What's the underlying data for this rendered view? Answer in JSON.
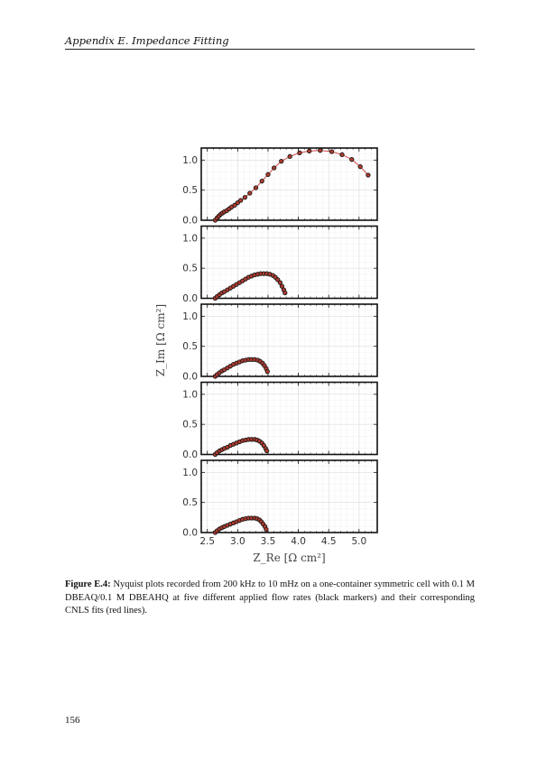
{
  "header": {
    "running_title": "Appendix E.  Impedance Fitting"
  },
  "page_number": "156",
  "caption": {
    "label": "Figure E.4:",
    "text": "Nyquist plots recorded from 200 kHz to 10 mHz on a one-container symmetric cell with 0.1 M DBEAQ/0.1 M DBEAHQ at five different applied flow rates (black markers) and their corresponding CNLS fits (red lines)."
  },
  "colors": {
    "marker_fill": "#b03a2e",
    "marker_edge": "#1a1a1a",
    "fit_line": "#d45555",
    "grid": "#dddddd"
  },
  "chart_data": {
    "type": "scatter",
    "layout": "five vertically stacked panels sharing x axis",
    "xlabel": "Z_Re [Ω cm²]",
    "ylabel": "Z_Im [Ω cm²]",
    "xlim": [
      2.4,
      5.3
    ],
    "ylim": [
      0,
      1.2
    ],
    "x_ticks": [
      2.5,
      3.0,
      3.5,
      4.0,
      4.5,
      5.0
    ],
    "x_tick_labels": [
      "2.5",
      "3.0",
      "3.5",
      "4.0",
      "4.5",
      "5.0"
    ],
    "y_ticks": [
      0.0,
      0.5,
      1.0
    ],
    "y_tick_labels": [
      "0.0",
      "0.5",
      "1.0"
    ],
    "grid": true,
    "panels": [
      {
        "points": [
          [
            2.63,
            0.0
          ],
          [
            2.66,
            0.04
          ],
          [
            2.69,
            0.07
          ],
          [
            2.72,
            0.1
          ],
          [
            2.75,
            0.12
          ],
          [
            2.78,
            0.14
          ],
          [
            2.82,
            0.16
          ],
          [
            2.86,
            0.19
          ],
          [
            2.9,
            0.22
          ],
          [
            2.95,
            0.25
          ],
          [
            3.0,
            0.29
          ],
          [
            3.05,
            0.33
          ],
          [
            3.12,
            0.38
          ],
          [
            3.2,
            0.45
          ],
          [
            3.3,
            0.54
          ],
          [
            3.4,
            0.65
          ],
          [
            3.5,
            0.76
          ],
          [
            3.6,
            0.87
          ],
          [
            3.72,
            0.98
          ],
          [
            3.86,
            1.06
          ],
          [
            4.02,
            1.12
          ],
          [
            4.18,
            1.15
          ],
          [
            4.36,
            1.16
          ],
          [
            4.55,
            1.14
          ],
          [
            4.72,
            1.09
          ],
          [
            4.88,
            1.01
          ],
          [
            5.02,
            0.89
          ],
          [
            5.15,
            0.75
          ]
        ]
      },
      {
        "points": [
          [
            2.63,
            0.0
          ],
          [
            2.66,
            0.03
          ],
          [
            2.7,
            0.06
          ],
          [
            2.74,
            0.09
          ],
          [
            2.78,
            0.11
          ],
          [
            2.83,
            0.14
          ],
          [
            2.88,
            0.17
          ],
          [
            2.93,
            0.2
          ],
          [
            2.98,
            0.23
          ],
          [
            3.03,
            0.26
          ],
          [
            3.08,
            0.29
          ],
          [
            3.13,
            0.32
          ],
          [
            3.18,
            0.35
          ],
          [
            3.23,
            0.37
          ],
          [
            3.28,
            0.39
          ],
          [
            3.33,
            0.4
          ],
          [
            3.38,
            0.41
          ],
          [
            3.43,
            0.41
          ],
          [
            3.48,
            0.41
          ],
          [
            3.53,
            0.4
          ],
          [
            3.58,
            0.38
          ],
          [
            3.62,
            0.35
          ],
          [
            3.66,
            0.31
          ],
          [
            3.7,
            0.26
          ],
          [
            3.73,
            0.2
          ],
          [
            3.76,
            0.14
          ],
          [
            3.78,
            0.09
          ]
        ]
      },
      {
        "points": [
          [
            2.63,
            0.0
          ],
          [
            2.66,
            0.03
          ],
          [
            2.7,
            0.06
          ],
          [
            2.74,
            0.09
          ],
          [
            2.78,
            0.11
          ],
          [
            2.83,
            0.14
          ],
          [
            2.88,
            0.17
          ],
          [
            2.93,
            0.2
          ],
          [
            2.98,
            0.22
          ],
          [
            3.03,
            0.24
          ],
          [
            3.08,
            0.26
          ],
          [
            3.13,
            0.27
          ],
          [
            3.18,
            0.28
          ],
          [
            3.23,
            0.28
          ],
          [
            3.28,
            0.28
          ],
          [
            3.33,
            0.27
          ],
          [
            3.37,
            0.25
          ],
          [
            3.41,
            0.22
          ],
          [
            3.44,
            0.18
          ],
          [
            3.47,
            0.13
          ],
          [
            3.49,
            0.08
          ]
        ]
      },
      {
        "points": [
          [
            2.63,
            0.0
          ],
          [
            2.66,
            0.03
          ],
          [
            2.7,
            0.06
          ],
          [
            2.74,
            0.08
          ],
          [
            2.78,
            0.1
          ],
          [
            2.83,
            0.12
          ],
          [
            2.88,
            0.15
          ],
          [
            2.93,
            0.17
          ],
          [
            2.98,
            0.19
          ],
          [
            3.03,
            0.21
          ],
          [
            3.08,
            0.23
          ],
          [
            3.13,
            0.24
          ],
          [
            3.18,
            0.25
          ],
          [
            3.23,
            0.25
          ],
          [
            3.28,
            0.25
          ],
          [
            3.32,
            0.24
          ],
          [
            3.36,
            0.22
          ],
          [
            3.4,
            0.19
          ],
          [
            3.43,
            0.15
          ],
          [
            3.46,
            0.1
          ],
          [
            3.48,
            0.06
          ]
        ]
      },
      {
        "points": [
          [
            2.63,
            0.0
          ],
          [
            2.66,
            0.03
          ],
          [
            2.7,
            0.06
          ],
          [
            2.74,
            0.08
          ],
          [
            2.78,
            0.1
          ],
          [
            2.83,
            0.12
          ],
          [
            2.88,
            0.14
          ],
          [
            2.93,
            0.16
          ],
          [
            2.98,
            0.18
          ],
          [
            3.03,
            0.2
          ],
          [
            3.08,
            0.22
          ],
          [
            3.13,
            0.23
          ],
          [
            3.18,
            0.24
          ],
          [
            3.23,
            0.24
          ],
          [
            3.28,
            0.24
          ],
          [
            3.32,
            0.23
          ],
          [
            3.36,
            0.21
          ],
          [
            3.39,
            0.18
          ],
          [
            3.42,
            0.14
          ],
          [
            3.45,
            0.1
          ],
          [
            3.47,
            0.05
          ]
        ]
      }
    ]
  }
}
